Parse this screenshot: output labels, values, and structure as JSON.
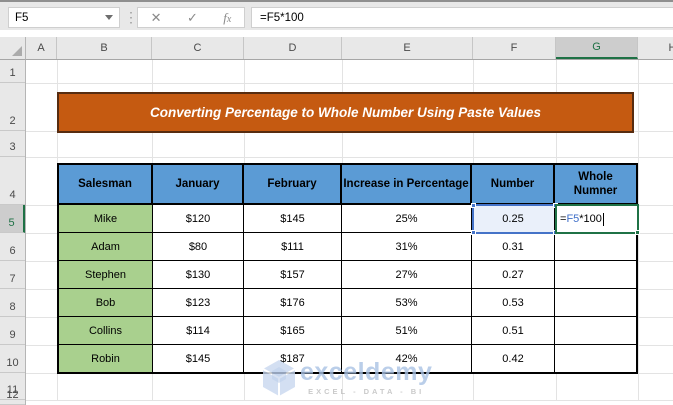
{
  "formula_bar": {
    "name_box_value": "F5",
    "formula_text": "=F5*100",
    "icons": {
      "cancel": "✕",
      "enter": "✓",
      "function_f": "f",
      "function_x": "x",
      "dropdown": "▾",
      "more_dots": "⋮"
    }
  },
  "grid": {
    "column_letters": [
      "A",
      "B",
      "C",
      "D",
      "E",
      "F",
      "G",
      "H"
    ],
    "selected_column": "G",
    "row_numbers": [
      "1",
      "2",
      "3",
      "4",
      "5",
      "6",
      "7",
      "8",
      "9",
      "10",
      "11",
      "12"
    ],
    "selected_row": "5"
  },
  "banner": {
    "title": "Converting Percentage to Whole Number Using Paste Values"
  },
  "table": {
    "headers": [
      "Salesman",
      "January",
      "February",
      "Increase in Percentage",
      "Number",
      "Whole Numner"
    ],
    "rows": [
      [
        "Mike",
        "$120",
        "$145",
        "25%",
        "0.25",
        ""
      ],
      [
        "Adam",
        "$80",
        "$111",
        "31%",
        "0.31",
        ""
      ],
      [
        "Stephen",
        "$130",
        "$157",
        "27%",
        "0.27",
        ""
      ],
      [
        "Bob",
        "$123",
        "$176",
        "53%",
        "0.53",
        ""
      ],
      [
        "Collins",
        "$114",
        "$165",
        "51%",
        "0.51",
        ""
      ],
      [
        "Robin",
        "$145",
        "$187",
        "42%",
        "0.42",
        ""
      ]
    ]
  },
  "editing_cell": {
    "cell": "G5",
    "referenced_cell": "F5",
    "formula_prefix": "=",
    "formula_ref": "F5",
    "formula_suffix": "*100"
  },
  "watermark": {
    "brand": "exceldemy",
    "tagline": "EXCEL - DATA - BI",
    "logo": "cube-logo"
  },
  "colors": {
    "banner_bg": "#C55A11",
    "banner_border": "#572C10",
    "table_header_bg": "#5B9BD5",
    "salesman_col_bg": "#A9D08E",
    "reference_border": "#4573C8",
    "reference_fill": "#EAF0FA",
    "edit_cell_border": "#1F7246",
    "formula_ref_text": "#3F6FC8",
    "selected_heading_accent": "#1E7145"
  }
}
